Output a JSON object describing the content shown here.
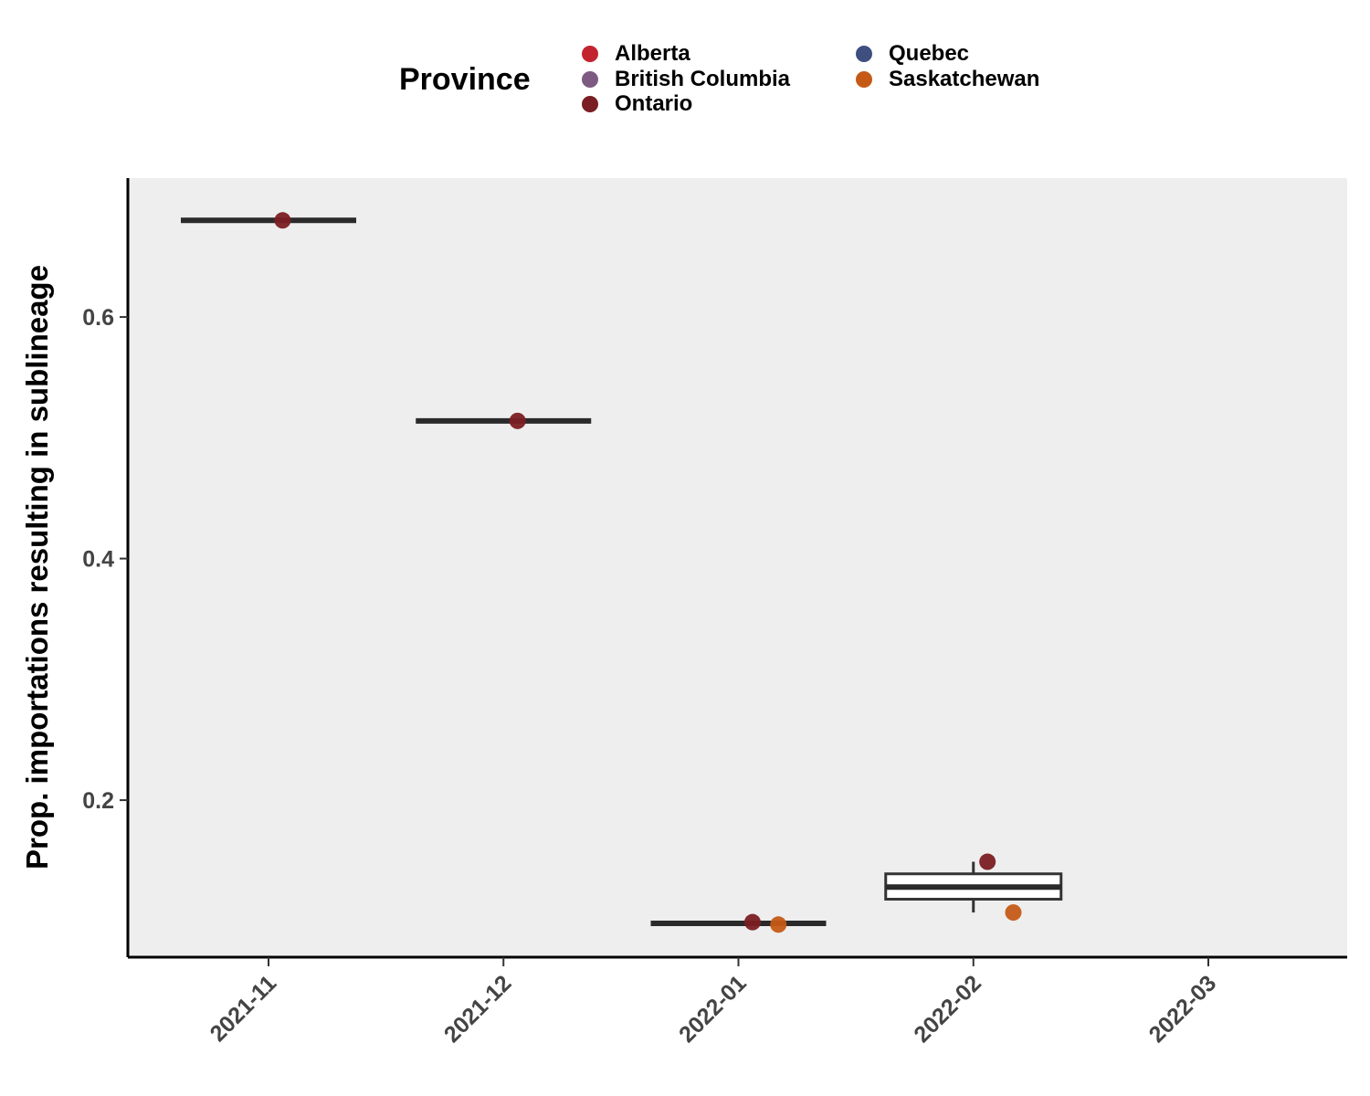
{
  "legend": {
    "title": "Province",
    "items": [
      {
        "label": "Alberta",
        "color": "#C3232E"
      },
      {
        "label": "British Columbia",
        "color": "#7D5A82"
      },
      {
        "label": "Ontario",
        "color": "#7B1E23"
      },
      {
        "label": "Quebec",
        "color": "#3E4F80"
      },
      {
        "label": "Saskatchewan",
        "color": "#C45A16"
      }
    ]
  },
  "chart_data": {
    "type": "box",
    "title": "",
    "xlabel": "",
    "ylabel": "Prop. importations resulting in sublineage",
    "categories": [
      "2021-11",
      "2021-12",
      "2022-01",
      "2022-02",
      "2022-03"
    ],
    "ylim": [
      0.07,
      0.715
    ],
    "yticks": [
      0.2,
      0.4,
      0.6
    ],
    "ytick_labels": [
      "0.2",
      "0.4",
      "0.6"
    ],
    "grid": false,
    "panel_background": "#EEEEEE",
    "boxes": [
      {
        "category": "2021-11",
        "min": 0.68,
        "q1": 0.68,
        "median": 0.68,
        "q3": 0.68,
        "max": 0.68
      },
      {
        "category": "2021-12",
        "min": 0.514,
        "q1": 0.514,
        "median": 0.514,
        "q3": 0.514,
        "max": 0.514
      },
      {
        "category": "2022-01",
        "min": 0.098,
        "q1": 0.098,
        "median": 0.098,
        "q3": 0.098,
        "max": 0.098
      },
      {
        "category": "2022-02",
        "min": 0.107,
        "q1": 0.118,
        "median": 0.128,
        "q3": 0.139,
        "max": 0.149
      }
    ],
    "points": [
      {
        "category": "2021-11",
        "province": "Ontario",
        "y": 0.68,
        "jitter": 0.06
      },
      {
        "category": "2021-12",
        "province": "Ontario",
        "y": 0.514,
        "jitter": 0.06
      },
      {
        "category": "2022-01",
        "province": "Ontario",
        "y": 0.099,
        "jitter": 0.06
      },
      {
        "category": "2022-01",
        "province": "Saskatchewan",
        "y": 0.097,
        "jitter": 0.17
      },
      {
        "category": "2022-02",
        "province": "Ontario",
        "y": 0.149,
        "jitter": 0.06
      },
      {
        "category": "2022-02",
        "province": "Saskatchewan",
        "y": 0.107,
        "jitter": 0.17
      }
    ]
  }
}
